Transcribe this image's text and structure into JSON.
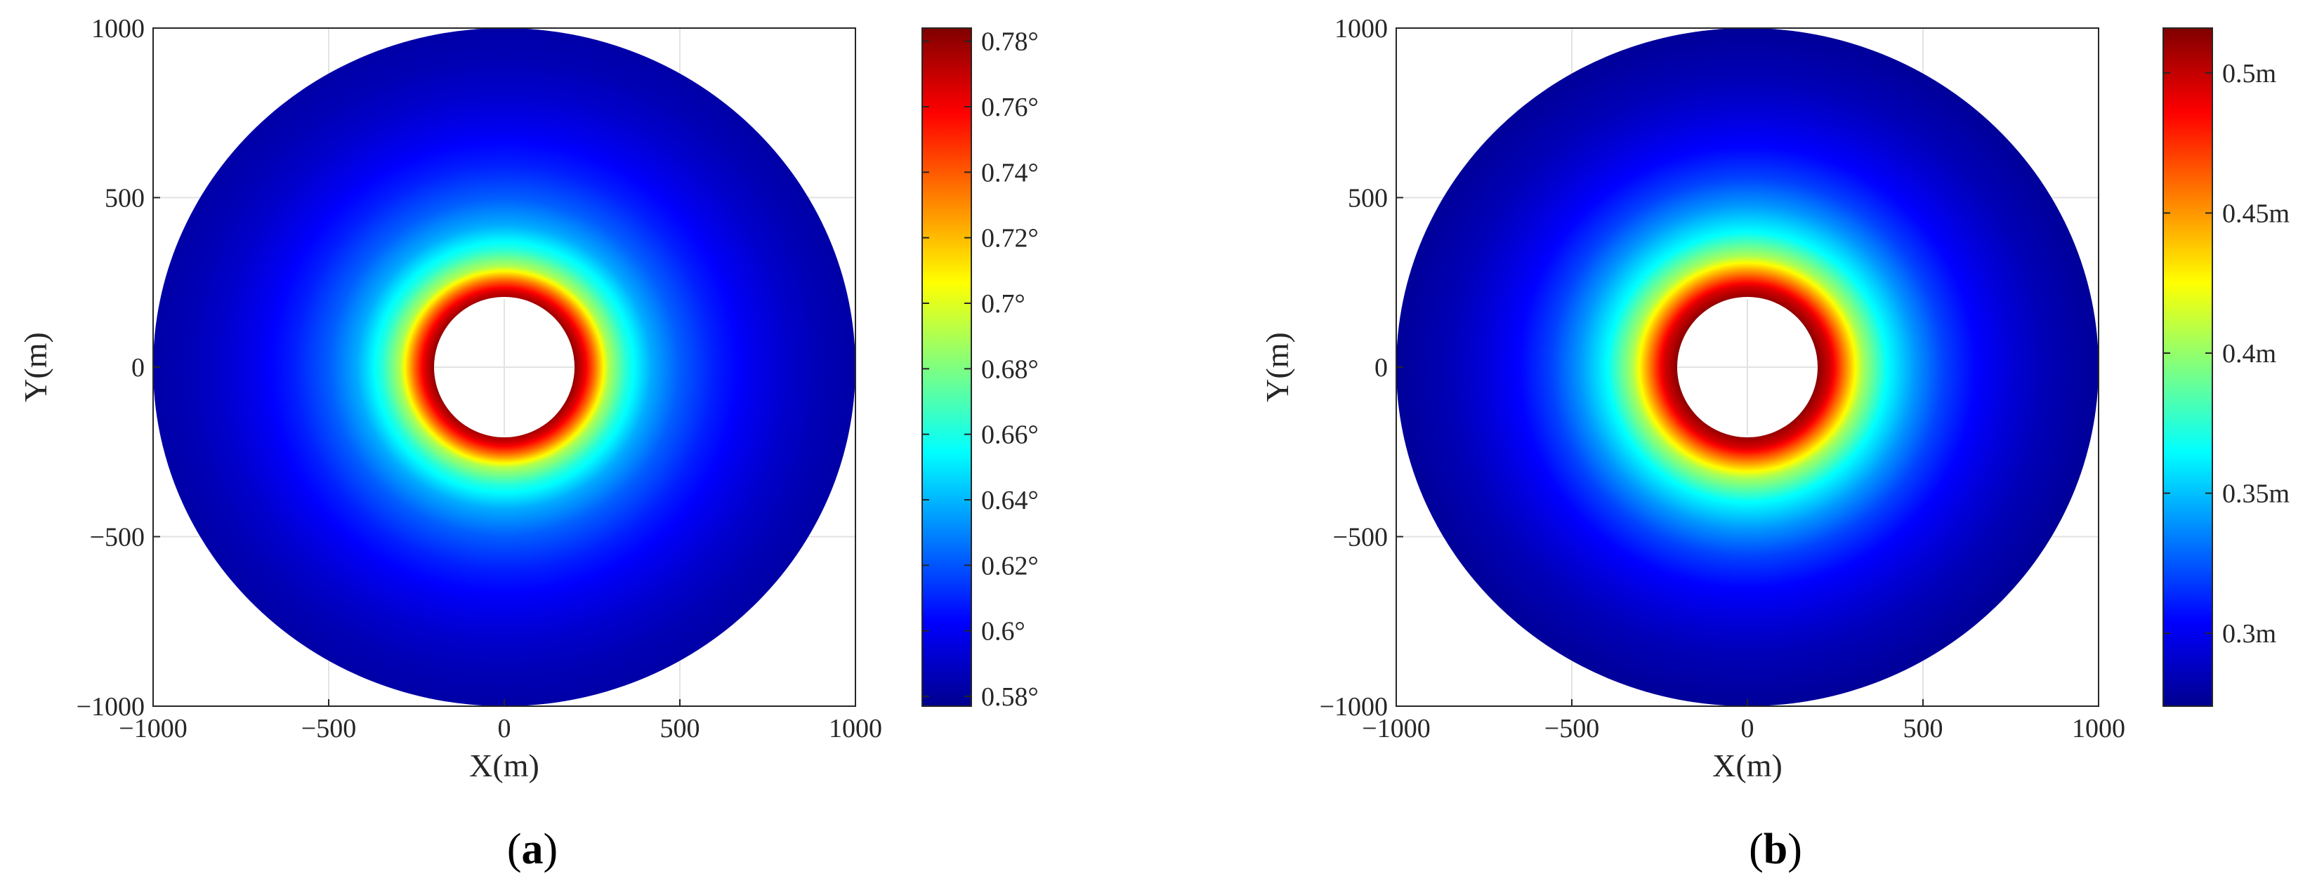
{
  "chart_data": [
    {
      "type": "heatmap",
      "panel_label": {
        "open": "(",
        "letter": "a",
        "close": ")"
      },
      "xlabel": "X(m)",
      "ylabel": "Y(m)",
      "xlim": [
        -1000,
        1000
      ],
      "ylim": [
        -1000,
        1000
      ],
      "xticks": [
        "−1000",
        "−500",
        "0",
        "500",
        "1000"
      ],
      "xtick_values": [
        -1000,
        -500,
        0,
        500,
        1000
      ],
      "yticks": [
        "−1000",
        "−500",
        "0",
        "500",
        "1000"
      ],
      "ytick_values": [
        -1000,
        -500,
        0,
        500,
        1000
      ],
      "grid": true,
      "colormap": "jet",
      "domain": {
        "shape": "annulus",
        "inner_radius": 200,
        "outer_radius": 1000,
        "center": [
          0,
          0
        ]
      },
      "field_profile": {
        "radius_m": [
          200,
          230,
          260,
          300,
          350,
          420,
          500,
          600,
          700,
          800,
          900,
          1000
        ],
        "value": [
          0.782,
          0.764,
          0.735,
          0.69,
          0.662,
          0.638,
          0.622,
          0.609,
          0.6,
          0.593,
          0.588,
          0.585
        ]
      },
      "colorbar": {
        "min": 0.577,
        "max": 0.784,
        "tick_values": [
          0.58,
          0.6,
          0.62,
          0.64,
          0.66,
          0.68,
          0.7,
          0.72,
          0.74,
          0.76,
          0.78
        ],
        "tick_labels": [
          "0.58°",
          "0.6°",
          "0.62°",
          "0.64°",
          "0.66°",
          "0.68°",
          "0.7°",
          "0.72°",
          "0.74°",
          "0.76°",
          "0.78°"
        ]
      }
    },
    {
      "type": "heatmap",
      "panel_label": {
        "open": "(",
        "letter": "b",
        "close": ")"
      },
      "xlabel": "X(m)",
      "ylabel": "Y(m)",
      "xlim": [
        -1000,
        1000
      ],
      "ylim": [
        -1000,
        1000
      ],
      "xticks": [
        "−1000",
        "−500",
        "0",
        "500",
        "1000"
      ],
      "xtick_values": [
        -1000,
        -500,
        0,
        500,
        1000
      ],
      "yticks": [
        "−1000",
        "−500",
        "0",
        "500",
        "1000"
      ],
      "ytick_values": [
        -1000,
        -500,
        0,
        500,
        1000
      ],
      "grid": true,
      "colormap": "jet",
      "domain": {
        "shape": "annulus",
        "inner_radius": 200,
        "outer_radius": 1000,
        "center": [
          0,
          0
        ]
      },
      "field_profile": {
        "radius_m": [
          200,
          240,
          280,
          330,
          400,
          480,
          560,
          650,
          750,
          850,
          1000
        ],
        "value": [
          0.515,
          0.495,
          0.455,
          0.405,
          0.365,
          0.34,
          0.32,
          0.305,
          0.295,
          0.287,
          0.28
        ]
      },
      "colorbar": {
        "min": 0.274,
        "max": 0.516,
        "tick_values": [
          0.3,
          0.35,
          0.4,
          0.45,
          0.5
        ],
        "tick_labels": [
          "0.3m",
          "0.35m",
          "0.4m",
          "0.45m",
          "0.5m"
        ]
      }
    }
  ]
}
